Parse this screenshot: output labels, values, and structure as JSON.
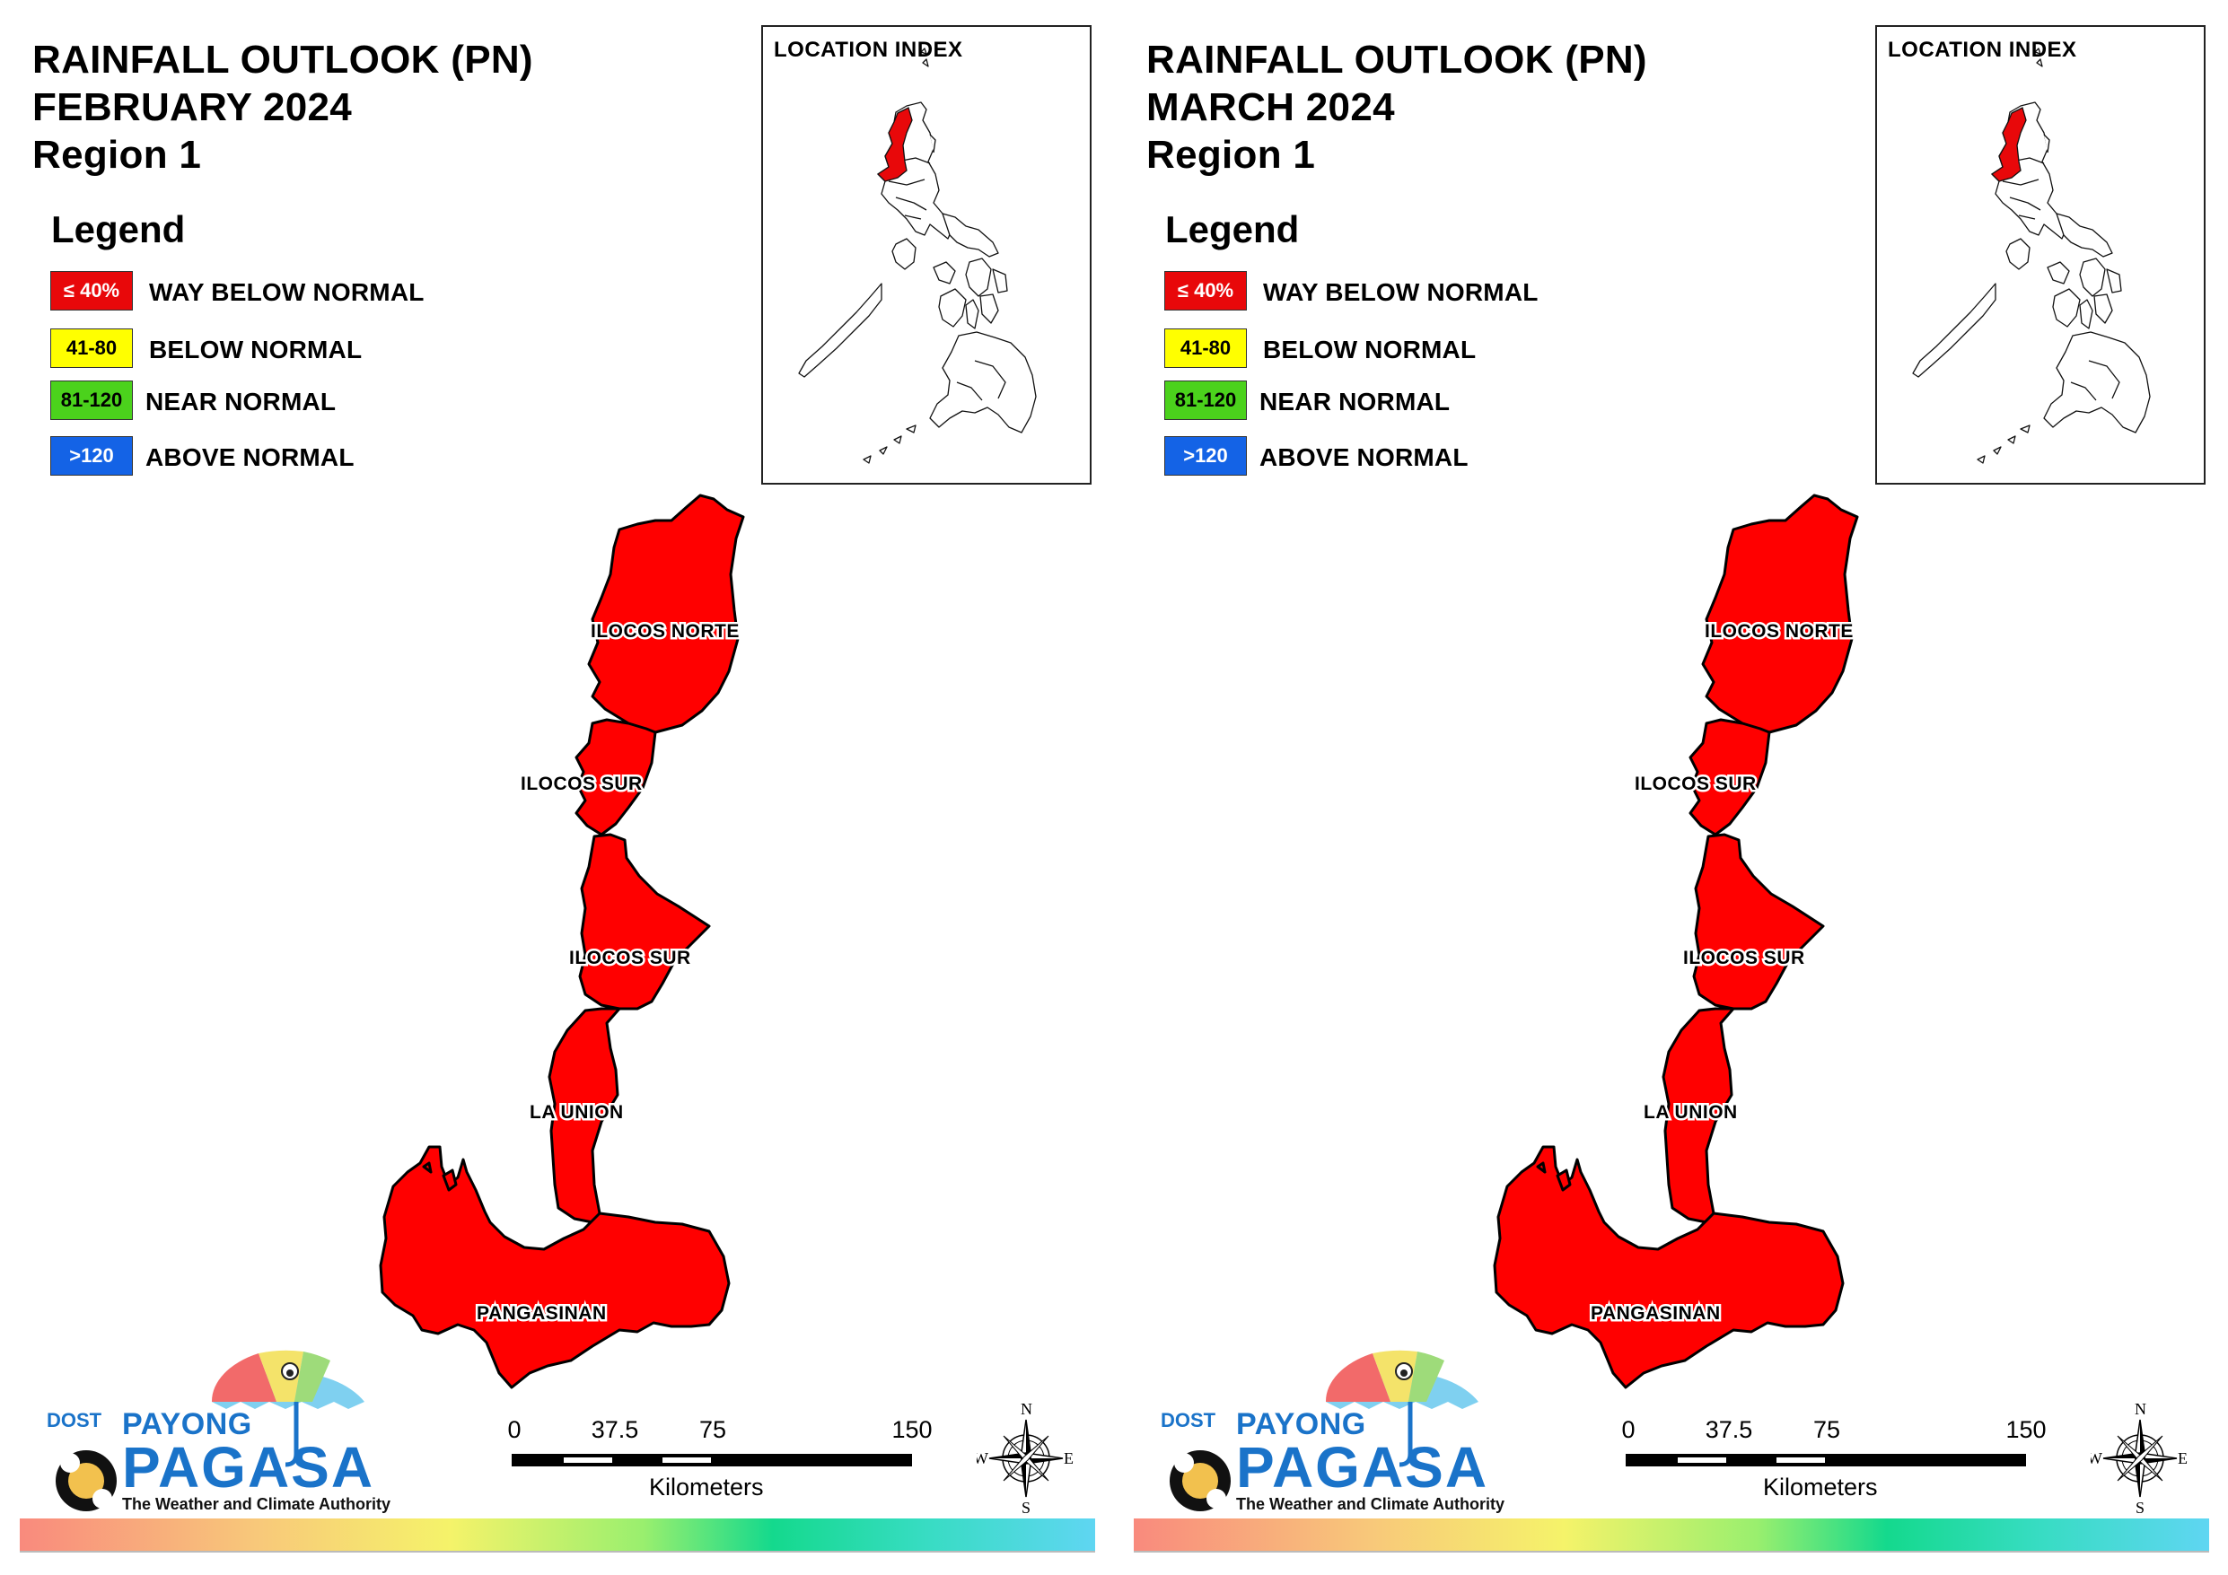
{
  "panels": [
    {
      "title": {
        "line1": "RAINFALL OUTLOOK (PN)",
        "line2": "FEBRUARY 2024",
        "line3": "Region 1"
      },
      "location_index": {
        "title": "LOCATION INDEX"
      },
      "provinces": [
        {
          "name": "ILOCOS NORTE",
          "category": "WAY BELOW NORMAL"
        },
        {
          "name": "ILOCOS SUR",
          "category": "WAY BELOW NORMAL"
        },
        {
          "name": "ILOCOS SUR",
          "category": "WAY BELOW NORMAL"
        },
        {
          "name": "LA UNION",
          "category": "WAY BELOW NORMAL"
        },
        {
          "name": "PANGASINAN",
          "category": "WAY BELOW NORMAL"
        }
      ]
    },
    {
      "title": {
        "line1": "RAINFALL OUTLOOK (PN)",
        "line2": "MARCH 2024",
        "line3": "Region 1"
      },
      "location_index": {
        "title": "LOCATION INDEX"
      },
      "provinces": [
        {
          "name": "ILOCOS NORTE",
          "category": "WAY BELOW NORMAL"
        },
        {
          "name": "ILOCOS SUR",
          "category": "WAY BELOW NORMAL"
        },
        {
          "name": "ILOCOS SUR",
          "category": "WAY BELOW NORMAL"
        },
        {
          "name": "LA UNION",
          "category": "WAY BELOW NORMAL"
        },
        {
          "name": "PANGASINAN",
          "category": "WAY BELOW NORMAL"
        }
      ]
    }
  ],
  "legend": {
    "heading": "Legend",
    "items": [
      {
        "code": "≤ 40%",
        "label": "WAY BELOW NORMAL",
        "color": "#e8080a"
      },
      {
        "code": "41-80",
        "label": "BELOW NORMAL",
        "color": "#ffff00"
      },
      {
        "code": "81-120",
        "label": "NEAR NORMAL",
        "color": "#4bd21c"
      },
      {
        "code": ">120",
        "label": "ABOVE NORMAL",
        "color": "#1463e6"
      }
    ]
  },
  "scale_bar": {
    "ticks": [
      "0",
      "37.5",
      "75",
      "150"
    ],
    "unit": "Kilometers"
  },
  "compass": {
    "n": "N",
    "s": "S",
    "e": "E",
    "w": "W"
  },
  "logo": {
    "dost": "DOST",
    "payong": "PAYONG",
    "pagasa": "PAGASA",
    "tagline": "The Weather and Climate Authority"
  },
  "colors": {
    "province_fill": "#ff0000",
    "province_stroke": "#000000"
  }
}
